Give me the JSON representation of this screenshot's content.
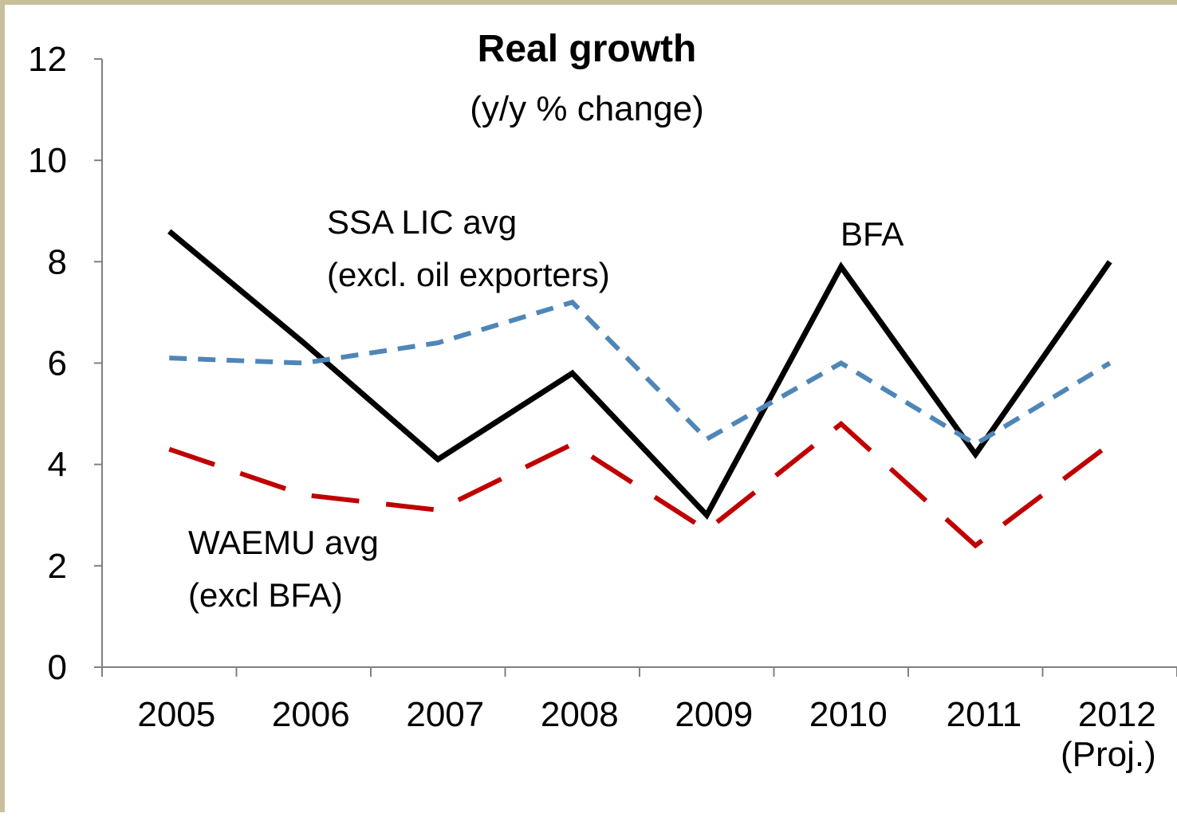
{
  "chart_data": {
    "type": "line",
    "title": "Real growth",
    "subtitle": "(y/y % change)",
    "categories": [
      "2005",
      "2006",
      "2007",
      "2008",
      "2009",
      "2010",
      "2011",
      "2012\n(Proj.)"
    ],
    "series": [
      {
        "name": "BFA",
        "color": "#000000",
        "values": [
          8.6,
          6.4,
          4.1,
          5.8,
          3.0,
          7.9,
          4.2,
          8.0
        ]
      },
      {
        "name": "SSA  LIC avg\n(excl. oil exporters)",
        "color": "#4f86b8",
        "values": [
          6.1,
          6.0,
          6.4,
          7.2,
          4.5,
          6.0,
          4.4,
          6.0
        ]
      },
      {
        "name": "WAEMU avg\n(excl BFA)",
        "color": "#c00000",
        "values": [
          4.3,
          3.4,
          3.1,
          4.4,
          2.7,
          4.8,
          2.4,
          4.4
        ]
      }
    ],
    "ylim": [
      0,
      12
    ],
    "yticks": [
      0,
      2,
      4,
      6,
      8,
      10,
      12
    ]
  }
}
